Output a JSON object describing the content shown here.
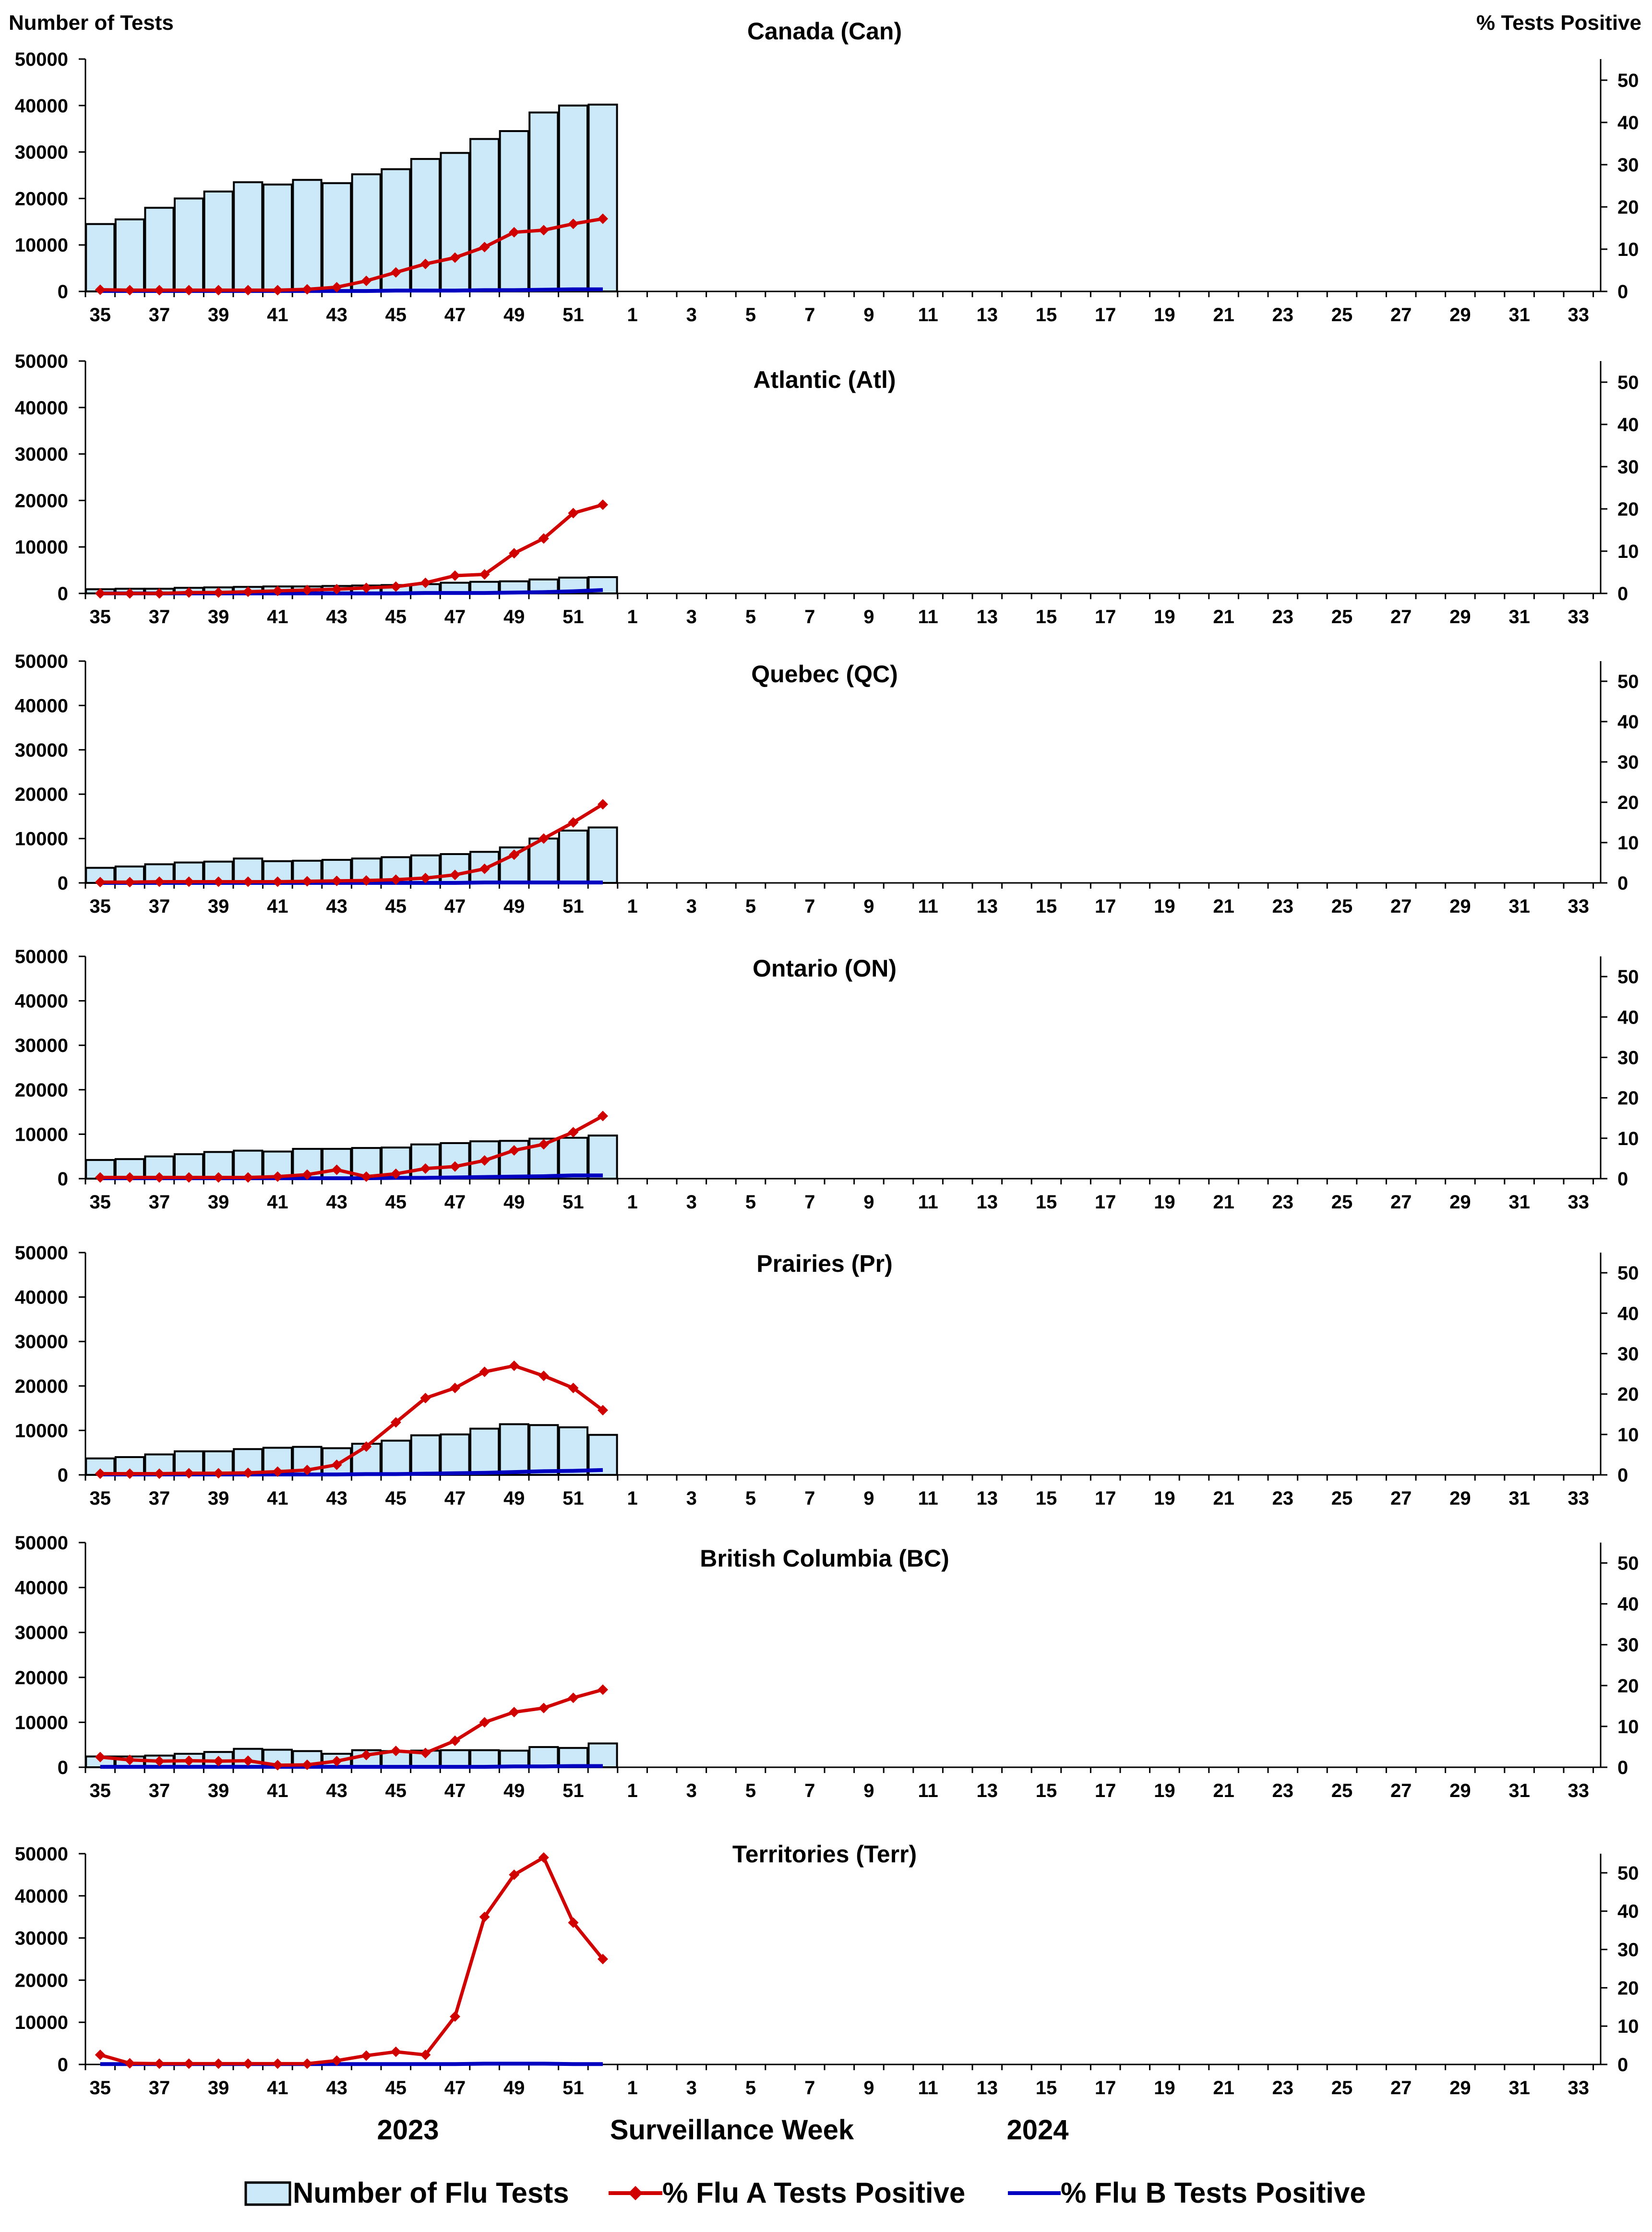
{
  "header": {
    "left_axis_title": "Number of Tests",
    "right_axis_title": "% Tests Positive"
  },
  "footer": {
    "year_left": "2023",
    "xlabel": "Surveillance Week",
    "year_right": "2024"
  },
  "legend": {
    "tests_label": "Number of Flu Tests",
    "flu_a_label": "% Flu A Tests Positive",
    "flu_b_label": "% Flu B Tests Positive"
  },
  "colors": {
    "bar_fill": "#cce9f9",
    "bar_stroke": "#000000",
    "flu_a": "#d00000",
    "flu_b": "#0000c0"
  },
  "chart_data": [
    {
      "type": "bar+line",
      "title": "Canada (Can)",
      "weeks": [
        35,
        36,
        37,
        38,
        39,
        40,
        41,
        42,
        43,
        44,
        45,
        46,
        47,
        48,
        49,
        50,
        51,
        52
      ],
      "tick_labels": [
        "35",
        "37",
        "39",
        "41",
        "43",
        "45",
        "47",
        "49",
        "51",
        "1",
        "3",
        "5",
        "7",
        "9",
        "11",
        "13",
        "15",
        "17",
        "19",
        "21",
        "23",
        "25",
        "27",
        "29",
        "31",
        "33"
      ],
      "ylim_left": [
        0,
        50000
      ],
      "ylim_right": [
        0,
        55
      ],
      "yticks_left": [
        0,
        10000,
        20000,
        30000,
        40000,
        50000
      ],
      "yticks_right": [
        0,
        10,
        20,
        30,
        40,
        50
      ],
      "series": [
        {
          "name": "Number of Flu Tests",
          "axis": "left",
          "kind": "bar",
          "values": [
            14500,
            15500,
            18000,
            20000,
            21500,
            23500,
            23000,
            24000,
            23300,
            25200,
            26300,
            28500,
            29800,
            32800,
            34500,
            38500,
            40000,
            40200
          ]
        },
        {
          "name": "% Flu A Tests Positive",
          "axis": "right",
          "kind": "line",
          "values": [
            0.4,
            0.3,
            0.3,
            0.3,
            0.3,
            0.3,
            0.3,
            0.5,
            1.0,
            2.5,
            4.5,
            6.5,
            8.0,
            10.5,
            14.0,
            14.5,
            16.0,
            17.2
          ]
        },
        {
          "name": "% Flu B Tests Positive",
          "axis": "right",
          "kind": "line",
          "values": [
            0.1,
            0.1,
            0.1,
            0.1,
            0.1,
            0.1,
            0.1,
            0.1,
            0.1,
            0.1,
            0.2,
            0.2,
            0.2,
            0.3,
            0.3,
            0.4,
            0.5,
            0.5
          ]
        }
      ]
    },
    {
      "type": "bar+line",
      "title": "Atlantic (Atl)",
      "weeks": [
        35,
        36,
        37,
        38,
        39,
        40,
        41,
        42,
        43,
        44,
        45,
        46,
        47,
        48,
        49,
        50,
        51,
        52
      ],
      "tick_labels": [
        "35",
        "37",
        "39",
        "41",
        "43",
        "45",
        "47",
        "49",
        "51",
        "1",
        "3",
        "5",
        "7",
        "9",
        "11",
        "13",
        "15",
        "17",
        "19",
        "21",
        "23",
        "25",
        "27",
        "29",
        "31",
        "33"
      ],
      "ylim_left": [
        0,
        50000
      ],
      "ylim_right": [
        0,
        55
      ],
      "yticks_left": [
        0,
        10000,
        20000,
        30000,
        40000,
        50000
      ],
      "yticks_right": [
        0,
        10,
        20,
        30,
        40,
        50
      ],
      "series": [
        {
          "name": "Number of Flu Tests",
          "axis": "left",
          "kind": "bar",
          "values": [
            900,
            1000,
            1000,
            1200,
            1300,
            1400,
            1500,
            1500,
            1600,
            1700,
            1800,
            2000,
            2300,
            2500,
            2600,
            3000,
            3400,
            3500
          ]
        },
        {
          "name": "% Flu A Tests Positive",
          "axis": "right",
          "kind": "line",
          "values": [
            0,
            0,
            0,
            0.2,
            0.2,
            0.4,
            0.6,
            0.8,
            1.0,
            1.3,
            1.6,
            2.5,
            4.2,
            4.5,
            9.5,
            13.0,
            19.0,
            21.0
          ]
        },
        {
          "name": "% Flu B Tests Positive",
          "axis": "right",
          "kind": "line",
          "values": [
            0,
            0,
            0,
            0,
            0,
            0,
            0,
            0,
            0,
            0,
            0,
            0.1,
            0.1,
            0.1,
            0.2,
            0.3,
            0.5,
            0.8
          ]
        }
      ]
    },
    {
      "type": "bar+line",
      "title": "Quebec (QC)",
      "weeks": [
        35,
        36,
        37,
        38,
        39,
        40,
        41,
        42,
        43,
        44,
        45,
        46,
        47,
        48,
        49,
        50,
        51,
        52
      ],
      "tick_labels": [
        "35",
        "37",
        "39",
        "41",
        "43",
        "45",
        "47",
        "49",
        "51",
        "1",
        "3",
        "5",
        "7",
        "9",
        "11",
        "13",
        "15",
        "17",
        "19",
        "21",
        "23",
        "25",
        "27",
        "29",
        "31",
        "33"
      ],
      "ylim_left": [
        0,
        50000
      ],
      "ylim_right": [
        0,
        55
      ],
      "yticks_left": [
        0,
        10000,
        20000,
        30000,
        40000,
        50000
      ],
      "yticks_right": [
        0,
        10,
        20,
        30,
        40,
        50
      ],
      "series": [
        {
          "name": "Number of Flu Tests",
          "axis": "left",
          "kind": "bar",
          "values": [
            3400,
            3700,
            4200,
            4600,
            4800,
            5500,
            4900,
            5000,
            5200,
            5500,
            5800,
            6200,
            6500,
            7000,
            8000,
            10000,
            11800,
            12500
          ]
        },
        {
          "name": "% Flu A Tests Positive",
          "axis": "right",
          "kind": "line",
          "values": [
            0.2,
            0.2,
            0.3,
            0.3,
            0.3,
            0.3,
            0.3,
            0.4,
            0.5,
            0.6,
            0.8,
            1.2,
            2.0,
            3.5,
            7.0,
            11.0,
            15.0,
            19.5
          ]
        },
        {
          "name": "% Flu B Tests Positive",
          "axis": "right",
          "kind": "line",
          "values": [
            0,
            0,
            0,
            0,
            0,
            0,
            0,
            0,
            0,
            0,
            0,
            0,
            0,
            0.1,
            0.1,
            0.1,
            0.1,
            0.1
          ]
        }
      ]
    },
    {
      "type": "bar+line",
      "title": "Ontario (ON)",
      "weeks": [
        35,
        36,
        37,
        38,
        39,
        40,
        41,
        42,
        43,
        44,
        45,
        46,
        47,
        48,
        49,
        50,
        51,
        52
      ],
      "tick_labels": [
        "35",
        "37",
        "39",
        "41",
        "43",
        "45",
        "47",
        "49",
        "51",
        "1",
        "3",
        "5",
        "7",
        "9",
        "11",
        "13",
        "15",
        "17",
        "19",
        "21",
        "23",
        "25",
        "27",
        "29",
        "31",
        "33"
      ],
      "ylim_left": [
        0,
        50000
      ],
      "ylim_right": [
        0,
        55
      ],
      "yticks_left": [
        0,
        10000,
        20000,
        30000,
        40000,
        50000
      ],
      "yticks_right": [
        0,
        10,
        20,
        30,
        40,
        50
      ],
      "series": [
        {
          "name": "Number of Flu Tests",
          "axis": "left",
          "kind": "bar",
          "values": [
            4200,
            4400,
            5000,
            5500,
            6000,
            6300,
            6100,
            6700,
            6700,
            6900,
            7000,
            7700,
            8000,
            8400,
            8500,
            9000,
            9200,
            9700
          ]
        },
        {
          "name": "% Flu A Tests Positive",
          "axis": "right",
          "kind": "line",
          "values": [
            0.3,
            0.3,
            0.3,
            0.3,
            0.3,
            0.3,
            0.5,
            1.0,
            2.2,
            0.5,
            1.2,
            2.5,
            3.0,
            4.5,
            7.0,
            8.5,
            11.5,
            15.5
          ]
        },
        {
          "name": "% Flu B Tests Positive",
          "axis": "right",
          "kind": "line",
          "values": [
            0.1,
            0.1,
            0.1,
            0.1,
            0.1,
            0.1,
            0.1,
            0.1,
            0.1,
            0.1,
            0.2,
            0.2,
            0.3,
            0.4,
            0.5,
            0.6,
            0.8,
            0.8
          ]
        }
      ]
    },
    {
      "type": "bar+line",
      "title": "Prairies (Pr)",
      "weeks": [
        35,
        36,
        37,
        38,
        39,
        40,
        41,
        42,
        43,
        44,
        45,
        46,
        47,
        48,
        49,
        50,
        51,
        52
      ],
      "tick_labels": [
        "35",
        "37",
        "39",
        "41",
        "43",
        "45",
        "47",
        "49",
        "51",
        "1",
        "3",
        "5",
        "7",
        "9",
        "11",
        "13",
        "15",
        "17",
        "19",
        "21",
        "23",
        "25",
        "27",
        "29",
        "31",
        "33"
      ],
      "ylim_left": [
        0,
        50000
      ],
      "ylim_right": [
        0,
        55
      ],
      "yticks_left": [
        0,
        10000,
        20000,
        30000,
        40000,
        50000
      ],
      "yticks_right": [
        0,
        10,
        20,
        30,
        40,
        50
      ],
      "series": [
        {
          "name": "Number of Flu Tests",
          "axis": "left",
          "kind": "bar",
          "values": [
            3700,
            4000,
            4600,
            5300,
            5300,
            5800,
            6100,
            6300,
            6000,
            7000,
            7700,
            8900,
            9100,
            10400,
            11400,
            11200,
            10700,
            9000
          ]
        },
        {
          "name": "% Flu A Tests Positive",
          "axis": "right",
          "kind": "line",
          "values": [
            0.3,
            0.3,
            0.3,
            0.4,
            0.4,
            0.5,
            0.8,
            1.2,
            2.5,
            7.0,
            13.0,
            19.0,
            21.5,
            25.5,
            27.0,
            24.5,
            21.5,
            16.0
          ]
        },
        {
          "name": "% Flu B Tests Positive",
          "axis": "right",
          "kind": "line",
          "values": [
            0.1,
            0.1,
            0.1,
            0.1,
            0.1,
            0.1,
            0.1,
            0.1,
            0.1,
            0.2,
            0.2,
            0.3,
            0.4,
            0.5,
            0.7,
            0.9,
            1.0,
            1.2
          ]
        }
      ]
    },
    {
      "type": "bar+line",
      "title": "British Columbia (BC)",
      "weeks": [
        35,
        36,
        37,
        38,
        39,
        40,
        41,
        42,
        43,
        44,
        45,
        46,
        47,
        48,
        49,
        50,
        51,
        52
      ],
      "tick_labels": [
        "35",
        "37",
        "39",
        "41",
        "43",
        "45",
        "47",
        "49",
        "51",
        "1",
        "3",
        "5",
        "7",
        "9",
        "11",
        "13",
        "15",
        "17",
        "19",
        "21",
        "23",
        "25",
        "27",
        "29",
        "31",
        "33"
      ],
      "ylim_left": [
        0,
        50000
      ],
      "ylim_right": [
        0,
        55
      ],
      "yticks_left": [
        0,
        10000,
        20000,
        30000,
        40000,
        50000
      ],
      "yticks_right": [
        0,
        10,
        20,
        30,
        40,
        50
      ],
      "series": [
        {
          "name": "Number of Flu Tests",
          "axis": "left",
          "kind": "bar",
          "values": [
            2400,
            2400,
            2600,
            3000,
            3400,
            4100,
            3900,
            3600,
            3000,
            3800,
            3600,
            3700,
            3800,
            3800,
            3700,
            4500,
            4300,
            5300
          ]
        },
        {
          "name": "% Flu A Tests Positive",
          "axis": "right",
          "kind": "line",
          "values": [
            2.5,
            1.8,
            1.5,
            1.6,
            1.5,
            1.6,
            0.5,
            0.6,
            1.5,
            3.0,
            4.0,
            3.5,
            6.5,
            11.0,
            13.5,
            14.5,
            17.0,
            19.0
          ]
        },
        {
          "name": "% Flu B Tests Positive",
          "axis": "right",
          "kind": "line",
          "values": [
            0.1,
            0.1,
            0.1,
            0.1,
            0.1,
            0.1,
            0.1,
            0.1,
            0.1,
            0.1,
            0.1,
            0.1,
            0.1,
            0.1,
            0.2,
            0.2,
            0.3,
            0.3
          ]
        }
      ]
    },
    {
      "type": "bar+line",
      "title": "Territories (Terr)",
      "weeks": [
        35,
        36,
        37,
        38,
        39,
        40,
        41,
        42,
        43,
        44,
        45,
        46,
        47,
        48,
        49,
        50,
        51,
        52
      ],
      "tick_labels": [
        "35",
        "37",
        "39",
        "41",
        "43",
        "45",
        "47",
        "49",
        "51",
        "1",
        "3",
        "5",
        "7",
        "9",
        "11",
        "13",
        "15",
        "17",
        "19",
        "21",
        "23",
        "25",
        "27",
        "29",
        "31",
        "33"
      ],
      "ylim_left": [
        0,
        50000
      ],
      "ylim_right": [
        0,
        55
      ],
      "yticks_left": [
        0,
        10000,
        20000,
        30000,
        40000,
        50000
      ],
      "yticks_right": [
        0,
        10,
        20,
        30,
        40,
        50
      ],
      "series": [
        {
          "name": "Number of Flu Tests",
          "axis": "left",
          "kind": "bar",
          "values": [
            0,
            0,
            0,
            0,
            0,
            0,
            0,
            0,
            0,
            0,
            0,
            0,
            0,
            0,
            0,
            0,
            0,
            0
          ]
        },
        {
          "name": "% Flu A Tests Positive",
          "axis": "right",
          "kind": "line",
          "values": [
            2.5,
            0.3,
            0.2,
            0.2,
            0.2,
            0.2,
            0.2,
            0.2,
            1.0,
            2.3,
            3.3,
            2.5,
            12.5,
            38.5,
            49.5,
            54.0,
            37.0,
            27.5
          ]
        },
        {
          "name": "% Flu B Tests Positive",
          "axis": "right",
          "kind": "line",
          "values": [
            0.1,
            0.1,
            0.1,
            0.1,
            0.1,
            0.1,
            0.1,
            0.1,
            0.1,
            0.1,
            0.1,
            0.1,
            0.1,
            0.2,
            0.2,
            0.2,
            0.1,
            0.1
          ]
        }
      ]
    }
  ]
}
